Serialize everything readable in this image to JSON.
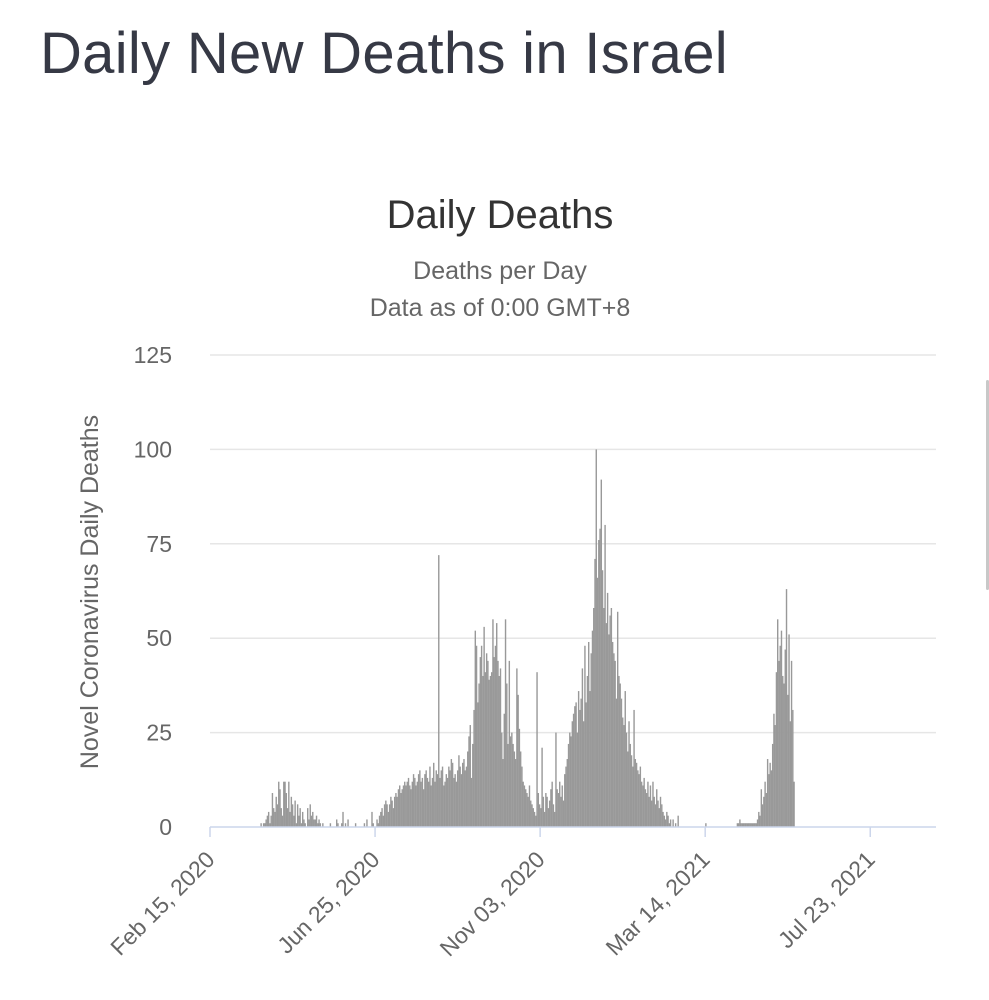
{
  "page": {
    "title": "Daily New Deaths in Israel"
  },
  "chart_data": {
    "type": "bar",
    "title": "Daily Deaths",
    "subtitle": "Deaths per Day",
    "subtitle2": "Data as of 0:00 GMT+8",
    "ylabel": "Novel Coronavirus Daily Deaths",
    "xlabel": "",
    "ylim": [
      0,
      125
    ],
    "yticks": [
      0,
      25,
      50,
      75,
      100,
      125
    ],
    "xtick_labels": [
      "Feb 15, 2020",
      "Jun 25, 2020",
      "Nov 03, 2020",
      "Mar 14, 2021",
      "Jul 23, 2021"
    ],
    "x_start": "Feb 15, 2020",
    "x_tick_step_days": 131,
    "grid": true,
    "bar_color": "#999999",
    "series": [
      {
        "name": "Daily Deaths",
        "values": [
          0,
          0,
          0,
          0,
          0,
          0,
          0,
          0,
          0,
          0,
          0,
          0,
          0,
          0,
          0,
          0,
          0,
          0,
          0,
          0,
          0,
          0,
          0,
          0,
          0,
          0,
          0,
          0,
          0,
          0,
          0,
          0,
          0,
          0,
          0,
          0,
          0,
          0,
          0,
          0,
          1,
          0,
          1,
          1,
          2,
          3,
          4,
          1,
          3,
          9,
          5,
          4,
          8,
          6,
          12,
          10,
          5,
          3,
          12,
          12,
          9,
          5,
          12,
          4,
          8,
          6,
          3,
          7,
          1,
          6,
          3,
          5,
          1,
          4,
          2,
          1,
          0,
          5,
          2,
          6,
          3,
          4,
          2,
          2,
          3,
          1,
          2,
          1,
          0,
          1,
          0,
          0,
          0,
          0,
          0,
          1,
          0,
          0,
          0,
          0,
          2,
          1,
          0,
          0,
          1,
          4,
          0,
          1,
          0,
          2,
          0,
          0,
          0,
          0,
          0,
          1,
          0,
          0,
          0,
          0,
          0,
          0,
          1,
          0,
          2,
          0,
          0,
          0,
          4,
          1,
          0,
          0,
          2,
          1,
          3,
          4,
          5,
          3,
          6,
          7,
          6,
          4,
          6,
          8,
          7,
          5,
          8,
          9,
          8,
          10,
          11,
          9,
          10,
          11,
          12,
          11,
          12,
          13,
          11,
          10,
          12,
          14,
          13,
          11,
          12,
          14,
          15,
          12,
          13,
          10,
          14,
          15,
          13,
          12,
          16,
          11,
          13,
          17,
          12,
          15,
          14,
          72,
          13,
          15,
          16,
          11,
          12,
          14,
          13,
          16,
          15,
          18,
          17,
          13,
          14,
          12,
          15,
          19,
          16,
          14,
          17,
          18,
          15,
          16,
          20,
          24,
          27,
          13,
          22,
          31,
          52,
          48,
          33,
          38,
          45,
          48,
          40,
          53,
          41,
          46,
          44,
          39,
          40,
          41,
          55,
          45,
          48,
          54,
          44,
          40,
          42,
          25,
          18,
          30,
          55,
          38,
          22,
          44,
          24,
          25,
          22,
          20,
          18,
          42,
          35,
          26,
          20,
          16,
          12,
          11,
          10,
          9,
          8,
          11,
          7,
          6,
          5,
          4,
          3,
          41,
          9,
          6,
          5,
          21,
          8,
          4,
          9,
          8,
          5,
          7,
          10,
          12,
          6,
          4,
          25,
          10,
          9,
          12,
          8,
          11,
          7,
          14,
          16,
          18,
          22,
          25,
          24,
          28,
          30,
          32,
          33,
          25,
          36,
          31,
          34,
          42,
          28,
          48,
          33,
          40,
          49,
          36,
          46,
          52,
          58,
          71,
          100,
          66,
          76,
          79,
          92,
          68,
          58,
          80,
          54,
          62,
          51,
          56,
          58,
          49,
          46,
          44,
          34,
          57,
          40,
          38,
          34,
          29,
          27,
          36,
          25,
          20,
          28,
          22,
          19,
          16,
          31,
          18,
          17,
          15,
          14,
          16,
          12,
          11,
          13,
          10,
          9,
          12,
          8,
          11,
          7,
          12,
          8,
          6,
          10,
          7,
          5,
          8,
          6,
          4,
          3,
          2,
          4,
          3,
          1,
          2,
          0,
          2,
          0,
          1,
          0,
          3,
          0,
          0,
          0,
          0,
          0,
          0,
          0,
          0,
          0,
          0,
          0,
          0,
          0,
          0,
          0,
          0,
          0,
          0,
          0,
          0,
          0,
          1,
          0,
          0,
          0,
          0,
          0,
          0,
          0,
          0,
          0,
          0,
          0,
          0,
          0,
          0,
          0,
          0,
          0,
          0,
          0,
          0,
          0,
          0,
          0,
          0,
          1,
          1,
          2,
          1,
          1,
          1,
          1,
          1,
          1,
          1,
          1,
          1,
          1,
          1,
          1,
          1,
          2,
          4,
          3,
          10,
          6,
          8,
          12,
          9,
          18,
          14,
          17,
          15,
          22,
          30,
          27,
          41,
          55,
          44,
          48,
          52,
          40,
          38,
          47,
          63,
          35,
          51,
          28,
          44,
          31,
          12
        ]
      }
    ]
  }
}
